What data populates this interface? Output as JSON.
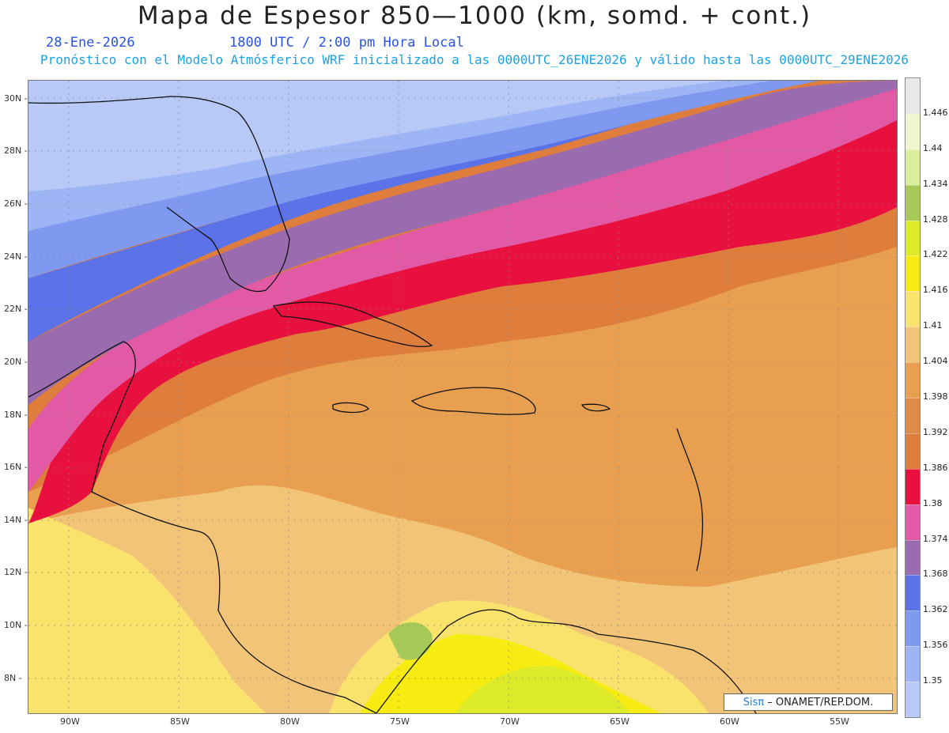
{
  "header": {
    "title": "Mapa de Espesor 850—1000 (km, somd. + cont.)",
    "date": "28-Ene-2026",
    "time": "1800 UTC / 2:00 pm Hora Local",
    "subtitle": "Pronóstico con el Modelo Atmósferico WRF inicializado a las 0000UTC_26ENE2026 y válido hasta las  0000UTC_29ENE2026"
  },
  "map": {
    "lat_labels": [
      "30N",
      "28N",
      "26N",
      "24N",
      "22N",
      "20N",
      "18N",
      "16N",
      "14N",
      "12N",
      "10N",
      "8N"
    ],
    "lon_labels": [
      "90W",
      "85W",
      "80W",
      "75W",
      "70W",
      "65W",
      "60W",
      "55W"
    ],
    "field_colors": {
      "very_low": "#b8c8f7",
      "low1": "#9db4f5",
      "low2": "#7f98f0",
      "low3": "#5c72e8",
      "purple": "#9b6bb0",
      "pink": "#e25aa5",
      "red": "#e8103f",
      "dark_orange": "#df7d3c",
      "orange": "#e8a050",
      "light_orange": "#f1c477",
      "yellow": "#f9e36d",
      "bright_yellow": "#f7ec12",
      "lime": "#dcea2a",
      "green": "#a6c95a"
    }
  },
  "colorbar": {
    "levels": [
      "1.35",
      "1.356",
      "1.362",
      "1.368",
      "1.374",
      "1.38",
      "1.386",
      "1.392",
      "1.398",
      "1.404",
      "1.41",
      "1.416",
      "1.422",
      "1.428",
      "1.434",
      "1.44",
      "1.446"
    ],
    "colors": [
      "#b8c8f7",
      "#9db4f5",
      "#7f98f0",
      "#5c72e8",
      "#9b6bb0",
      "#e25aa5",
      "#e8103f",
      "#df7d3c",
      "#e08a48",
      "#e8a050",
      "#f1c477",
      "#f9e36d",
      "#f7ec12",
      "#dcea2a",
      "#a6c95a",
      "#dbeea0",
      "#f0f5d0",
      "#e8e8e8"
    ]
  },
  "credit": {
    "brand": "Sisπ",
    "text": "– ONAMET/REP.DOM."
  }
}
